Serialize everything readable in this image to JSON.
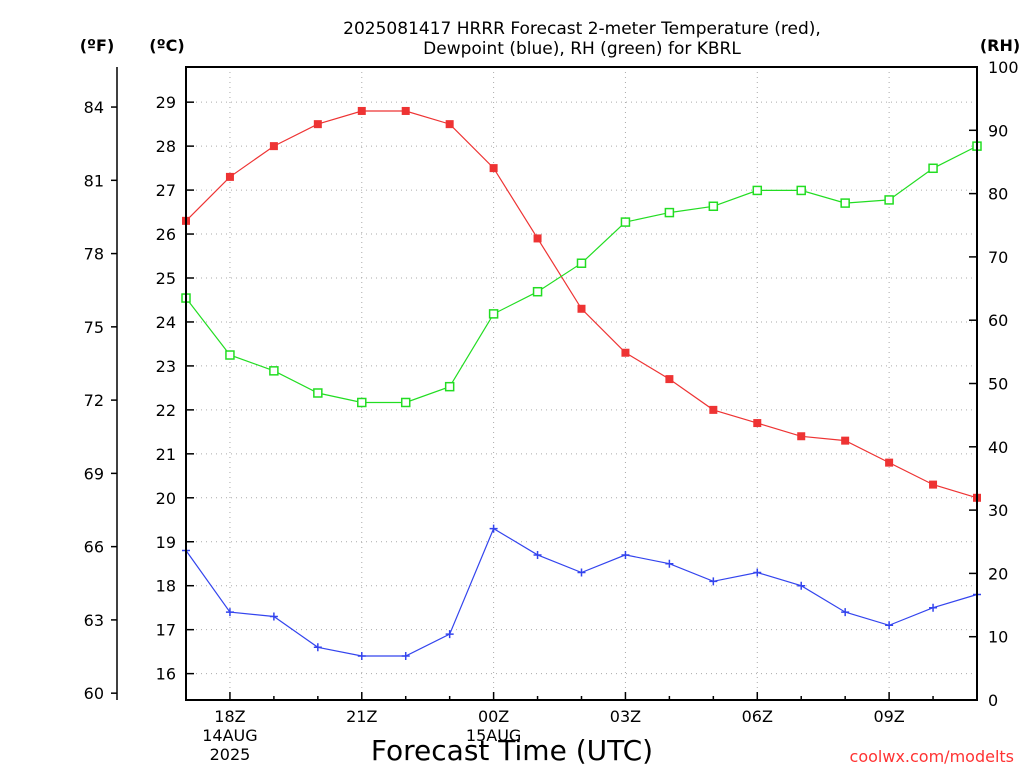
{
  "header": {
    "title_line1": "2025081417 HRRR Forecast 2-meter Temperature (red),",
    "title_line2": "Dewpoint (blue), RH (green) for KBRL"
  },
  "units": {
    "left_outer": "(ºF)",
    "left_inner": "(ºC)",
    "right": "(RH)"
  },
  "footer": {
    "xlabel": "Forecast Time (UTC)",
    "credit": "coolwx.com/modelts"
  },
  "chart_data": {
    "type": "line",
    "title": "2025081417 HRRR Forecast 2-meter Temperature (red), Dewpoint (blue), RH (green) for KBRL",
    "xlabel": "Forecast Time (UTC)",
    "x_hours": [
      17,
      18,
      19,
      20,
      21,
      22,
      23,
      24,
      25,
      26,
      27,
      28,
      29,
      30,
      31,
      32,
      33,
      34,
      35
    ],
    "x_ticks": [
      {
        "hour": 18,
        "lines": [
          "18Z",
          "14AUG",
          "2025"
        ]
      },
      {
        "hour": 21,
        "lines": [
          "21Z"
        ]
      },
      {
        "hour": 24,
        "lines": [
          "00Z",
          "15AUG"
        ]
      },
      {
        "hour": 27,
        "lines": [
          "03Z"
        ]
      },
      {
        "hour": 30,
        "lines": [
          "06Z"
        ]
      },
      {
        "hour": 33,
        "lines": [
          "09Z"
        ]
      }
    ],
    "xlim": [
      17,
      35
    ],
    "y_celsius": {
      "label": "(ºC)",
      "ylim": [
        15.4,
        29.8
      ],
      "ticks": [
        16,
        17,
        18,
        19,
        20,
        21,
        22,
        23,
        24,
        25,
        26,
        27,
        28,
        29
      ]
    },
    "y_fahrenheit": {
      "label": "(ºF)",
      "ticks": [
        60,
        63,
        66,
        69,
        72,
        75,
        78,
        81,
        84
      ]
    },
    "y_rh": {
      "label": "(RH)",
      "ylim": [
        0,
        100
      ],
      "ticks": [
        0,
        10,
        20,
        30,
        40,
        50,
        60,
        70,
        80,
        90,
        100
      ]
    },
    "grid": true,
    "series": [
      {
        "name": "Temperature",
        "axis": "celsius",
        "color": "#ee3333",
        "marker": "filled-square",
        "values": [
          26.3,
          27.3,
          28.0,
          28.5,
          28.8,
          28.8,
          28.5,
          27.5,
          25.9,
          24.3,
          23.3,
          22.7,
          22.0,
          21.7,
          21.4,
          21.3,
          20.8,
          20.3,
          20.0
        ]
      },
      {
        "name": "Dewpoint",
        "axis": "celsius",
        "color": "#3344ee",
        "marker": "plus",
        "values": [
          18.8,
          17.4,
          17.3,
          16.6,
          16.4,
          16.4,
          16.9,
          19.3,
          18.7,
          18.3,
          18.7,
          18.5,
          18.1,
          18.3,
          18.0,
          17.4,
          17.1,
          17.5,
          17.8
        ]
      },
      {
        "name": "RH",
        "axis": "rh",
        "color": "#22dd22",
        "marker": "open-square",
        "values": [
          63.5,
          54.5,
          52.0,
          48.5,
          47.0,
          47.0,
          49.5,
          61.0,
          64.5,
          69.0,
          75.5,
          77.0,
          78.0,
          80.5,
          80.5,
          78.5,
          79.0,
          84.0,
          87.5
        ]
      }
    ]
  }
}
